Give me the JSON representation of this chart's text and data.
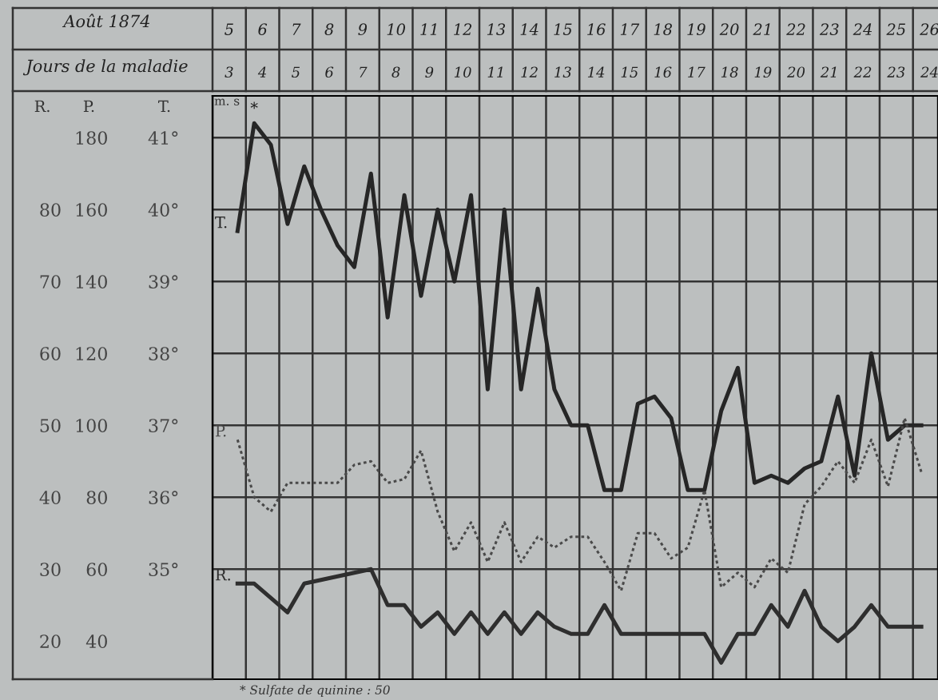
{
  "chart_data": {
    "type": "line",
    "xlabel": "Août 1874",
    "x2label": "Jours de la maladie",
    "ylabel": "T.",
    "y2label": "P.",
    "y3label": "R.",
    "xlim": [
      5,
      26.75
    ],
    "x2lim": [
      3,
      24.75
    ],
    "xticks": [
      {
        "value": 5.5,
        "label": "5"
      },
      {
        "value": 6.5,
        "label": "6"
      },
      {
        "value": 7.5,
        "label": "7"
      },
      {
        "value": 8.5,
        "label": "8"
      },
      {
        "value": 9.5,
        "label": "9"
      },
      {
        "value": 10.5,
        "label": "10"
      },
      {
        "value": 11.5,
        "label": "11"
      },
      {
        "value": 12.5,
        "label": "12"
      },
      {
        "value": 13.5,
        "label": "13"
      },
      {
        "value": 14.5,
        "label": "14"
      },
      {
        "value": 15.5,
        "label": "15"
      },
      {
        "value": 16.5,
        "label": "16"
      },
      {
        "value": 17.5,
        "label": "17"
      },
      {
        "value": 18.5,
        "label": "18"
      },
      {
        "value": 19.5,
        "label": "19"
      },
      {
        "value": 20.5,
        "label": "20"
      },
      {
        "value": 21.5,
        "label": "21"
      },
      {
        "value": 22.5,
        "label": "22"
      },
      {
        "value": 23.5,
        "label": "23"
      },
      {
        "value": 24.5,
        "label": "24"
      },
      {
        "value": 25.5,
        "label": "25"
      },
      {
        "value": 26.5,
        "label": "26"
      }
    ],
    "x2ticks": [
      {
        "value": 3.5,
        "label": "3"
      },
      {
        "value": 4.5,
        "label": "4"
      },
      {
        "value": 5.5,
        "label": "5"
      },
      {
        "value": 6.5,
        "label": "6"
      },
      {
        "value": 7.5,
        "label": "7"
      },
      {
        "value": 8.5,
        "label": "8"
      },
      {
        "value": 9.5,
        "label": "9"
      },
      {
        "value": 10.5,
        "label": "10"
      },
      {
        "value": 11.5,
        "label": "11"
      },
      {
        "value": 12.5,
        "label": "12"
      },
      {
        "value": 13.5,
        "label": "13"
      },
      {
        "value": 14.5,
        "label": "14"
      },
      {
        "value": 15.5,
        "label": "15"
      },
      {
        "value": 16.5,
        "label": "16"
      },
      {
        "value": 17.5,
        "label": "17"
      },
      {
        "value": 18.5,
        "label": "18"
      },
      {
        "value": 19.5,
        "label": "19"
      },
      {
        "value": 20.5,
        "label": "20"
      },
      {
        "value": 21.5,
        "label": "21"
      },
      {
        "value": 22.5,
        "label": "22"
      },
      {
        "value": 23.5,
        "label": "23"
      },
      {
        "value": 24.5,
        "label": "24"
      }
    ],
    "ylim": [
      33.47,
      41.58
    ],
    "yticks": [
      {
        "value": 35,
        "label": "35°"
      },
      {
        "value": 36,
        "label": "36°"
      },
      {
        "value": 37,
        "label": "37°"
      },
      {
        "value": 38,
        "label": "38°"
      },
      {
        "value": 39,
        "label": "39°"
      },
      {
        "value": 40,
        "label": "40°"
      },
      {
        "value": 41,
        "label": "41°"
      }
    ],
    "y2lim": [
      29.4,
      191.6
    ],
    "y2ticks": [
      40,
      60,
      80,
      100,
      120,
      140,
      160,
      180
    ],
    "y3lim": [
      14.7,
      95.8
    ],
    "y3ticks": [
      20,
      30,
      40,
      50,
      60,
      70,
      80
    ],
    "grid": true,
    "tick_labels": "xy",
    "series": [
      {
        "name": "T.",
        "color": "#262626",
        "line_style": "solid",
        "x": [
          5.75,
          6.25,
          6.75,
          7.25,
          7.75,
          8.25,
          8.75,
          9.25,
          9.75,
          10.25,
          10.75,
          11.25,
          11.75,
          12.25,
          12.75,
          13.25,
          13.75,
          14.25,
          14.75,
          15.25,
          15.75,
          16.25,
          16.75,
          17.25,
          17.75,
          18.25,
          18.75,
          19.25,
          19.75,
          20.25,
          20.75,
          21.25,
          21.75,
          22.25,
          22.75,
          23.25,
          23.75,
          24.25,
          24.75,
          25.25,
          25.75,
          26.25
        ],
        "values": [
          39.7,
          41.2,
          40.9,
          39.8,
          40.6,
          40.0,
          39.5,
          39.2,
          40.5,
          38.5,
          40.2,
          38.8,
          40.0,
          39.0,
          40.2,
          37.5,
          40.0,
          37.5,
          38.9,
          37.5,
          37.0,
          37.0,
          36.1,
          36.1,
          37.3,
          37.4,
          37.1,
          36.1,
          36.1,
          37.2,
          37.8,
          36.2,
          36.3,
          36.2,
          36.4,
          36.5,
          37.4,
          36.3,
          38.0,
          36.8,
          37.0,
          37.0
        ]
      },
      {
        "name": "P.",
        "color": "#4a4a4a",
        "line_style": "dotted",
        "axis": "y2",
        "x": [
          5.75,
          6.25,
          6.75,
          7.25,
          7.75,
          8.25,
          8.75,
          9.25,
          9.75,
          10.25,
          10.75,
          11.25,
          11.75,
          12.25,
          12.75,
          13.25,
          13.75,
          14.25,
          14.75,
          15.25,
          15.75,
          16.25,
          16.75,
          17.25,
          17.75,
          18.25,
          18.75,
          19.25,
          19.75,
          20.25,
          20.75,
          21.25,
          21.75,
          22.25,
          22.75,
          23.25,
          23.75,
          24.25,
          24.75,
          25.25,
          25.75,
          26.25
        ],
        "values": [
          96,
          80,
          76,
          84,
          84,
          84,
          84,
          89,
          90,
          84,
          85,
          93,
          76,
          65,
          73,
          62,
          73,
          62,
          69,
          66,
          69,
          69,
          62,
          54,
          70,
          70,
          63,
          66,
          82,
          55,
          59,
          55,
          63,
          59,
          78,
          83,
          90,
          84,
          96,
          83,
          102,
          87
        ]
      },
      {
        "name": "R.",
        "color": "#2e2e2e",
        "line_style": "solid",
        "axis": "y3",
        "x": [
          5.75,
          6.25,
          7.25,
          7.75,
          9.75,
          10.25,
          10.75,
          11.25,
          11.75,
          12.25,
          12.75,
          13.25,
          13.75,
          14.25,
          14.75,
          15.25,
          15.75,
          16.25,
          16.75,
          17.25,
          19.75,
          20.25,
          20.75,
          21.25,
          21.75,
          22.25,
          22.75,
          23.25,
          23.75,
          24.25,
          24.75,
          25.25,
          26.25
        ],
        "values": [
          28,
          28,
          24,
          28,
          30,
          25,
          25,
          22,
          24,
          21,
          24,
          21,
          24,
          21,
          24,
          22,
          21,
          21,
          25,
          21,
          21,
          17,
          21,
          21,
          25,
          22,
          27,
          22,
          20,
          22,
          25,
          22,
          22
        ]
      }
    ],
    "annotations": [
      {
        "text": "*",
        "x": 6.25,
        "y": 41.2
      },
      "m. s",
      "* Sulfate de quinine : 50"
    ]
  }
}
